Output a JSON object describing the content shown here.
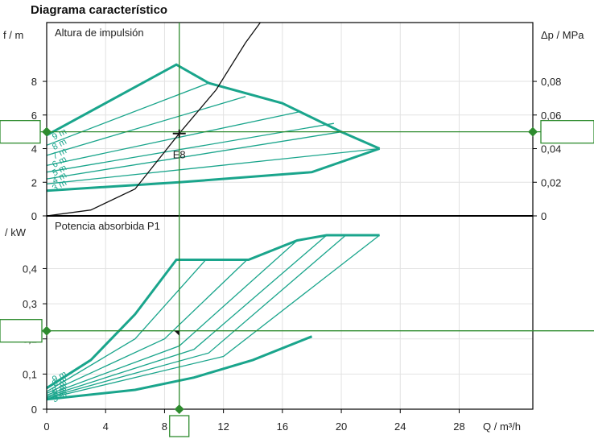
{
  "title": "Diagrama característico",
  "chart_data": [
    {
      "type": "line",
      "panel": "Altura de impulsión",
      "ylabel": "f / m",
      "ylabel_right": "Δp / MPa",
      "xlim": [
        0,
        33
      ],
      "ylim": [
        0,
        11.5
      ],
      "x_ticks": [
        0,
        4,
        8,
        12,
        16,
        20,
        24,
        28
      ],
      "y_ticks": [
        0,
        2,
        4,
        6,
        8
      ],
      "y_ticks_right": [
        "0",
        "0,02",
        "0,04",
        "0,06",
        "0,08"
      ],
      "max_curve": [
        [
          0,
          4.8
        ],
        [
          8.8,
          9.0
        ],
        [
          11,
          7.9
        ],
        [
          16,
          6.7
        ],
        [
          20,
          5.0
        ],
        [
          22.6,
          4.0
        ]
      ],
      "min_curve": [
        [
          0,
          1.5
        ],
        [
          9,
          2.0
        ],
        [
          18,
          2.6
        ],
        [
          22.6,
          4.0
        ]
      ],
      "speed_curves": [
        [
          [
            0,
            4.2
          ],
          [
            11,
            7.9
          ]
        ],
        [
          [
            0,
            3.6
          ],
          [
            13.5,
            7.1
          ]
        ],
        [
          [
            0,
            3.0
          ],
          [
            17.2,
            6.2
          ]
        ],
        [
          [
            0,
            2.6
          ],
          [
            19.5,
            5.5
          ]
        ],
        [
          [
            0,
            2.2
          ],
          [
            20,
            5.0
          ]
        ],
        [
          [
            0,
            1.9
          ],
          [
            22.6,
            4.0
          ]
        ]
      ],
      "speed_labels": [
        "9 m",
        "8 m",
        "7 m",
        "6 m",
        "5 m",
        "4 m",
        "3 m"
      ],
      "system_curve": [
        [
          0,
          0
        ],
        [
          3,
          0.35
        ],
        [
          6,
          1.6
        ],
        [
          9,
          4.9
        ],
        [
          11.5,
          7.5
        ],
        [
          13.5,
          10.3
        ],
        [
          14.5,
          11.5
        ]
      ],
      "operating_point": {
        "x": 9,
        "y": 4.9,
        "label": "E8"
      },
      "marker_left": "5",
      "marker_right": "0,049",
      "marker_y": 5
    },
    {
      "type": "line",
      "panel": "Potencia absorbida P1",
      "ylabel": "/ kW",
      "xlabel": "Q / m³/h",
      "xlim": [
        0,
        33
      ],
      "ylim": [
        0,
        0.55
      ],
      "x_ticks": [
        0,
        4,
        8,
        12,
        16,
        20,
        24,
        28
      ],
      "x_tick_labels": [
        "0",
        "4",
        "8",
        "12",
        "16",
        "20",
        "24",
        "28"
      ],
      "y_ticks": [
        0,
        0.1,
        0.2,
        0.3,
        0.4
      ],
      "y_tick_labels": [
        "0",
        "0,1",
        "0,2",
        "0,3",
        "0,4"
      ],
      "max_curve": [
        [
          0,
          0.06
        ],
        [
          3,
          0.14
        ],
        [
          6,
          0.27
        ],
        [
          8.8,
          0.425
        ],
        [
          13.7,
          0.425
        ],
        [
          17,
          0.48
        ],
        [
          19,
          0.495
        ],
        [
          22.6,
          0.495
        ]
      ],
      "min_curve": [
        [
          0,
          0.028
        ],
        [
          6,
          0.055
        ],
        [
          10,
          0.09
        ],
        [
          14,
          0.14
        ],
        [
          18,
          0.207
        ]
      ],
      "speed_curves": [
        [
          [
            0,
            0.05
          ],
          [
            6,
            0.2
          ],
          [
            10.8,
            0.425
          ]
        ],
        [
          [
            0,
            0.045
          ],
          [
            8,
            0.2
          ],
          [
            13.6,
            0.425
          ]
        ],
        [
          [
            0,
            0.04
          ],
          [
            9,
            0.18
          ],
          [
            17,
            0.48
          ]
        ],
        [
          [
            0,
            0.036
          ],
          [
            10,
            0.17
          ],
          [
            19,
            0.495
          ]
        ],
        [
          [
            0,
            0.033
          ],
          [
            11,
            0.16
          ],
          [
            20.3,
            0.495
          ]
        ],
        [
          [
            0,
            0.03
          ],
          [
            12,
            0.15
          ],
          [
            22.6,
            0.495
          ]
        ]
      ],
      "speed_labels": [
        "9 m",
        "8 m",
        "7 m",
        "6 m",
        "5 m",
        "4 m",
        "3 m"
      ],
      "marker_left": "0,223",
      "marker_y": 0.223,
      "marker_bottom": "9",
      "marker_x": 9
    }
  ],
  "colors": {
    "curve": "#1aa58c",
    "marker": "#2e8b2e",
    "axis": "#000000",
    "system": "#111111"
  }
}
